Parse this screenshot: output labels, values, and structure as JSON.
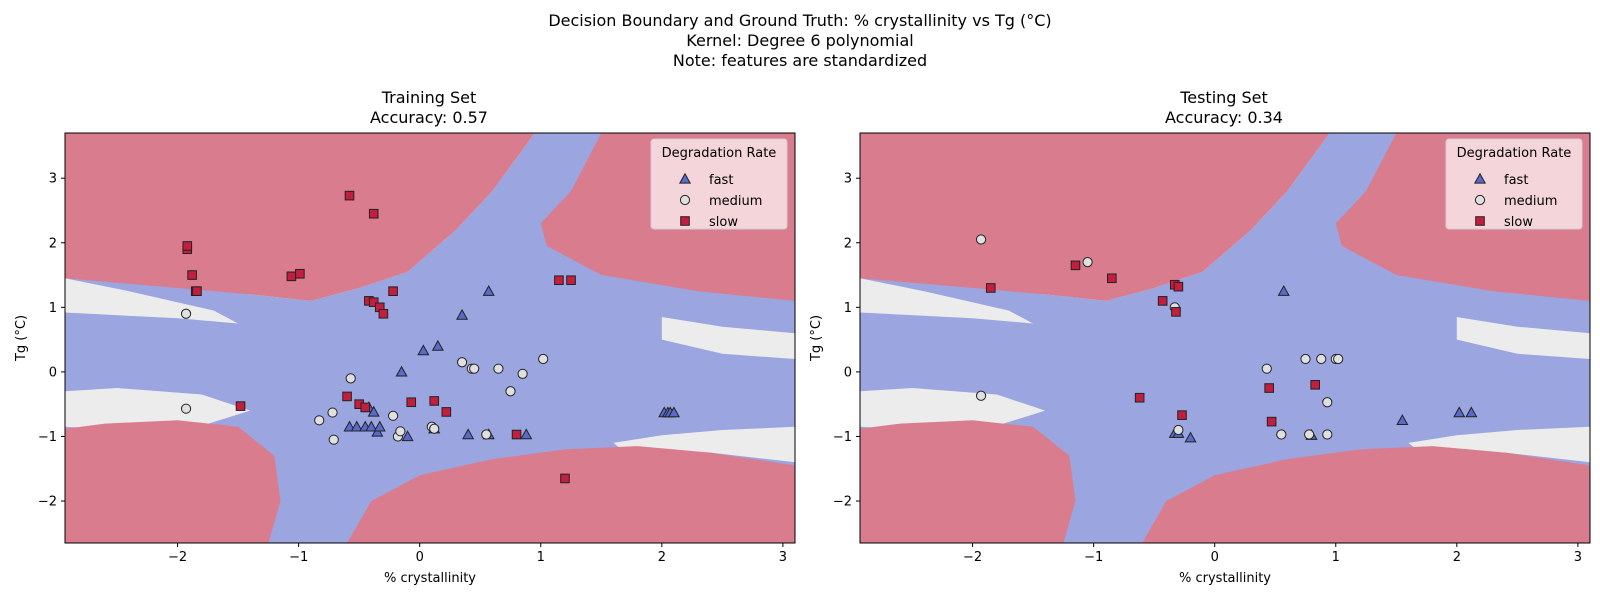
{
  "suptitle": [
    "Decision Boundary and Ground Truth: % crystallinity vs Tg (°C)",
    "Kernel: Degree 6 polynomial",
    "Note: features are standardized"
  ],
  "colors": {
    "fast_region": "#9ba5e0",
    "medium_region": "#ececec",
    "slow_region": "#d97d8e",
    "fast_marker": "#5a6ac8",
    "medium_marker": "#e0e0e0",
    "slow_marker": "#c21e3e",
    "marker_edge": "#222222",
    "legend_bg": "#f7e4e7"
  },
  "chart_data": [
    {
      "type": "scatter",
      "title": "Training Set",
      "subtitle": "Accuracy: 0.57",
      "xlabel": "% crystallinity",
      "ylabel": "Tg (°C)",
      "xlim": [
        -2.93,
        3.1
      ],
      "ylim": [
        -2.65,
        3.7
      ],
      "xticks": [
        -2,
        -1,
        0,
        1,
        2,
        3
      ],
      "yticks": [
        -2,
        -1,
        0,
        1,
        2,
        3
      ],
      "grid": false,
      "legend_title": "Degradation Rate",
      "legend_position": "top-right",
      "series": [
        {
          "name": "fast",
          "marker": "triangle",
          "points": [
            [
              -0.58,
              -0.85
            ],
            [
              -0.52,
              -0.85
            ],
            [
              -0.45,
              -0.85
            ],
            [
              -0.42,
              -0.55
            ],
            [
              -0.4,
              -0.85
            ],
            [
              -0.38,
              -0.62
            ],
            [
              -0.35,
              -0.93
            ],
            [
              -0.33,
              -0.85
            ],
            [
              -0.15,
              0.0
            ],
            [
              -0.1,
              -1.0
            ],
            [
              0.03,
              0.33
            ],
            [
              0.15,
              0.4
            ],
            [
              0.12,
              -0.88
            ],
            [
              0.35,
              0.88
            ],
            [
              0.4,
              -0.97
            ],
            [
              0.57,
              1.25
            ],
            [
              0.57,
              -0.97
            ],
            [
              0.88,
              -0.97
            ],
            [
              2.02,
              -0.63
            ],
            [
              2.05,
              -0.63
            ],
            [
              2.07,
              -0.63
            ],
            [
              2.1,
              -0.63
            ]
          ]
        },
        {
          "name": "medium",
          "points": [
            [
              -1.93,
              0.9
            ],
            [
              -1.93,
              -0.57
            ],
            [
              -0.83,
              -0.75
            ],
            [
              -0.72,
              -0.63
            ],
            [
              -0.71,
              -1.05
            ],
            [
              -0.57,
              -0.1
            ],
            [
              -0.22,
              -0.68
            ],
            [
              -0.18,
              -1.0
            ],
            [
              -0.16,
              -0.92
            ],
            [
              0.1,
              -0.85
            ],
            [
              0.12,
              -0.88
            ],
            [
              0.35,
              0.15
            ],
            [
              0.43,
              0.05
            ],
            [
              0.45,
              0.05
            ],
            [
              0.55,
              -0.97
            ],
            [
              0.65,
              0.05
            ],
            [
              0.75,
              -0.3
            ],
            [
              0.85,
              -0.03
            ],
            [
              1.02,
              0.2
            ]
          ]
        },
        {
          "name": "slow",
          "marker": "square",
          "points": [
            [
              -1.92,
              1.9
            ],
            [
              -1.92,
              1.95
            ],
            [
              -1.88,
              1.5
            ],
            [
              -1.85,
              1.25
            ],
            [
              -1.84,
              1.25
            ],
            [
              -1.06,
              1.48
            ],
            [
              -0.99,
              1.52
            ],
            [
              -0.58,
              2.73
            ],
            [
              -0.38,
              2.45
            ],
            [
              -0.42,
              1.1
            ],
            [
              -0.38,
              1.08
            ],
            [
              -0.33,
              1.0
            ],
            [
              -0.3,
              0.9
            ],
            [
              -0.22,
              1.25
            ],
            [
              -1.48,
              -0.53
            ],
            [
              -0.6,
              -0.38
            ],
            [
              -0.5,
              -0.5
            ],
            [
              -0.45,
              -0.55
            ],
            [
              -0.07,
              -0.47
            ],
            [
              0.12,
              -0.45
            ],
            [
              0.22,
              -0.62
            ],
            [
              0.8,
              -0.97
            ],
            [
              1.15,
              1.42
            ],
            [
              1.25,
              1.42
            ],
            [
              1.2,
              -1.65
            ]
          ]
        }
      ]
    },
    {
      "type": "scatter",
      "title": "Testing Set",
      "subtitle": "Accuracy: 0.34",
      "xlabel": "% crystallinity",
      "ylabel": "Tg (°C)",
      "xlim": [
        -2.93,
        3.1
      ],
      "ylim": [
        -2.65,
        3.7
      ],
      "xticks": [
        -2,
        -1,
        0,
        1,
        2,
        3
      ],
      "yticks": [
        -2,
        -1,
        0,
        1,
        2,
        3
      ],
      "grid": false,
      "legend_title": "Degradation Rate",
      "legend_position": "top-right",
      "series": [
        {
          "name": "fast",
          "marker": "triangle",
          "points": [
            [
              0.57,
              1.25
            ],
            [
              -0.33,
              -0.95
            ],
            [
              -0.3,
              -0.95
            ],
            [
              -0.2,
              -1.02
            ],
            [
              0.8,
              -0.98
            ],
            [
              1.55,
              -0.75
            ],
            [
              2.02,
              -0.63
            ],
            [
              2.12,
              -0.63
            ]
          ]
        },
        {
          "name": "medium",
          "points": [
            [
              -1.93,
              2.05
            ],
            [
              -1.93,
              -0.37
            ],
            [
              -1.05,
              1.7
            ],
            [
              -0.33,
              1.0
            ],
            [
              -0.3,
              -0.9
            ],
            [
              0.43,
              0.05
            ],
            [
              0.55,
              -0.97
            ],
            [
              0.75,
              0.2
            ],
            [
              0.78,
              -0.97
            ],
            [
              0.88,
              0.2
            ],
            [
              0.93,
              -0.47
            ],
            [
              0.93,
              -0.97
            ],
            [
              1.0,
              0.2
            ],
            [
              1.02,
              0.2
            ]
          ]
        },
        {
          "name": "slow",
          "marker": "square",
          "points": [
            [
              -1.85,
              1.3
            ],
            [
              -1.15,
              1.65
            ],
            [
              -0.85,
              1.45
            ],
            [
              -0.43,
              1.1
            ],
            [
              -0.33,
              1.35
            ],
            [
              -0.3,
              1.32
            ],
            [
              -0.32,
              0.93
            ],
            [
              -0.62,
              -0.4
            ],
            [
              -0.27,
              -0.67
            ],
            [
              0.45,
              -0.25
            ],
            [
              0.47,
              -0.77
            ],
            [
              0.83,
              -0.2
            ]
          ]
        }
      ]
    }
  ]
}
